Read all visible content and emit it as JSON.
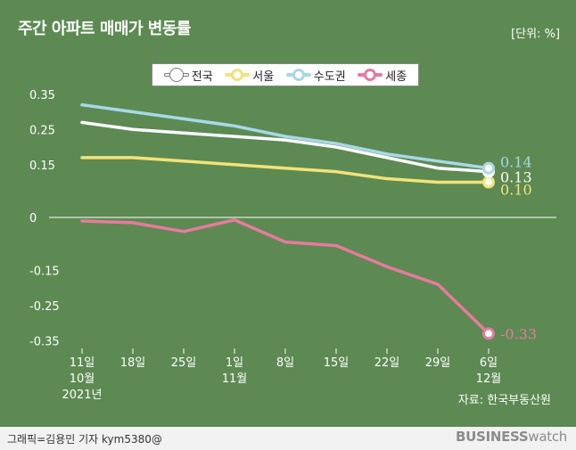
{
  "header": {
    "title": "주간 아파트 매매가 변동률",
    "unit": "[단위: %]"
  },
  "footer": {
    "source": "자료: 한국부동산원",
    "credit": "그래픽=김용민 기자 kym5380@",
    "brand_bold": "BUSINESS",
    "brand_light": "watch"
  },
  "chart_data": {
    "type": "line",
    "title": "주간 아파트 매매가 변동률",
    "unit": "[단위: %]",
    "x_labels": [
      [
        "11일",
        "10월",
        "2021년"
      ],
      [
        "18일"
      ],
      [
        "25일"
      ],
      [
        "1일",
        "11월"
      ],
      [
        "8일"
      ],
      [
        "15일"
      ],
      [
        "22일"
      ],
      [
        "29일"
      ],
      [
        "6일",
        "12월"
      ]
    ],
    "y_ticks": [
      "0.35",
      "0.25",
      "0.15",
      "0",
      "-0.15",
      "-0.25",
      "-0.35"
    ],
    "y_tick_values": [
      0.35,
      0.25,
      0.15,
      0,
      -0.15,
      -0.25,
      -0.35
    ],
    "series": [
      {
        "name": "전국",
        "color": "#ffffff",
        "values": [
          0.27,
          0.25,
          0.24,
          0.23,
          0.22,
          0.2,
          0.17,
          0.14,
          0.13
        ],
        "end_label": "0.13"
      },
      {
        "name": "서울",
        "color": "#f3e27a",
        "values": [
          0.17,
          0.17,
          0.16,
          0.15,
          0.14,
          0.13,
          0.11,
          0.1,
          0.1
        ],
        "end_label": "0.10"
      },
      {
        "name": "수도권",
        "color": "#a8d8e8",
        "values": [
          0.32,
          0.3,
          0.28,
          0.26,
          0.23,
          0.21,
          0.18,
          0.16,
          0.14
        ],
        "end_label": "0.14"
      },
      {
        "name": "세종",
        "color": "#e87a9e",
        "values": [
          -0.01,
          -0.015,
          -0.04,
          -0.007,
          -0.07,
          -0.08,
          -0.14,
          -0.19,
          -0.33
        ],
        "end_label": "-0.33"
      }
    ]
  }
}
